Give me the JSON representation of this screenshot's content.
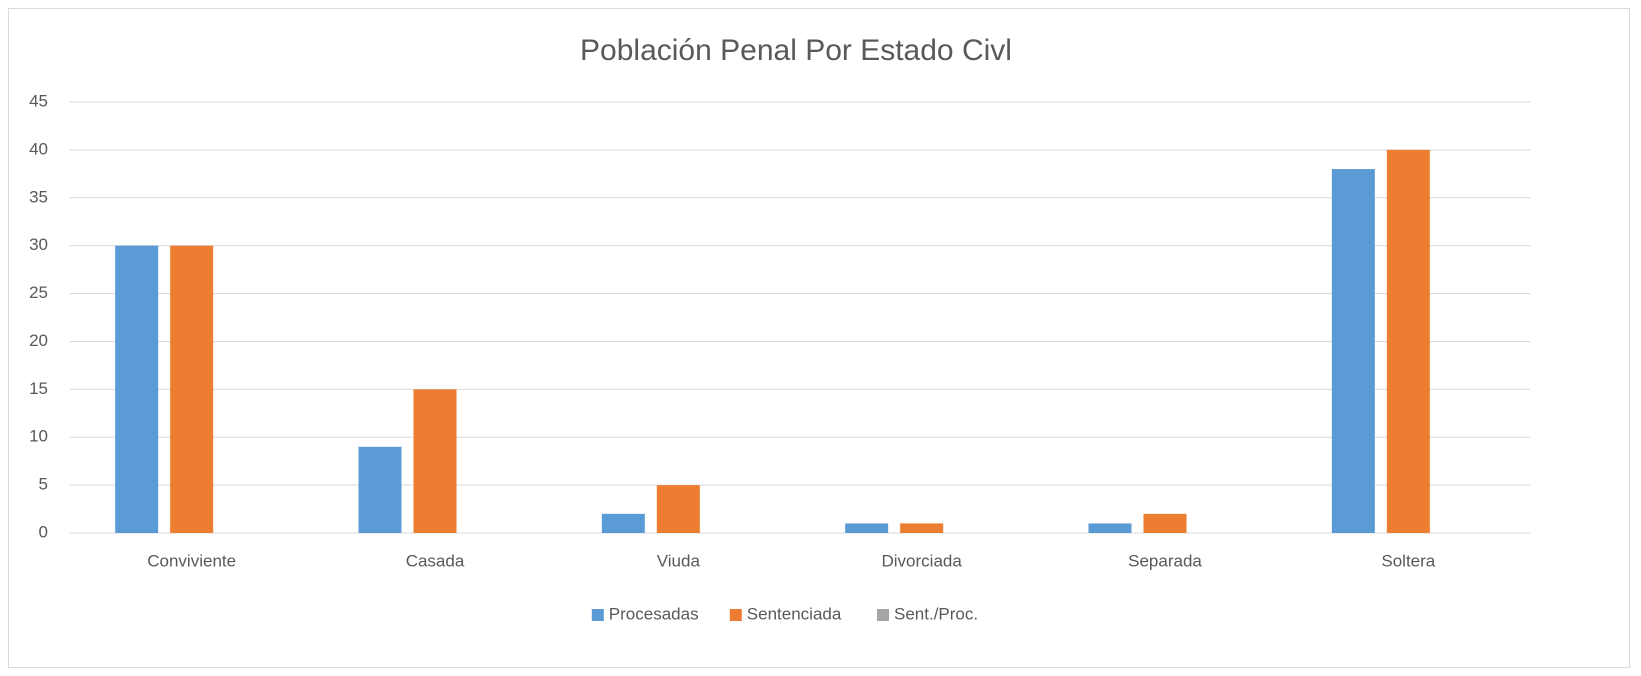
{
  "chart_data": {
    "type": "bar",
    "title": "Población Penal Por Estado Civl",
    "categories": [
      "Conviviente",
      "Casada",
      "Viuda",
      "Divorciada",
      "Separada",
      "Soltera"
    ],
    "series": [
      {
        "name": "Procesadas",
        "color": "#5b9bd5",
        "values": [
          30,
          9,
          2,
          1,
          1,
          38
        ]
      },
      {
        "name": "Sentenciada",
        "color": "#ed7d31",
        "values": [
          30,
          15,
          5,
          1,
          2,
          40
        ]
      },
      {
        "name": "Sent./Proc.",
        "color": "#a5a5a5",
        "values": [
          0,
          0,
          0,
          0,
          0,
          0
        ]
      }
    ],
    "ylim": [
      0,
      45
    ],
    "yticks": [
      0,
      5,
      10,
      15,
      20,
      25,
      30,
      35,
      40,
      45
    ],
    "grid": true,
    "legend": "bottom"
  }
}
